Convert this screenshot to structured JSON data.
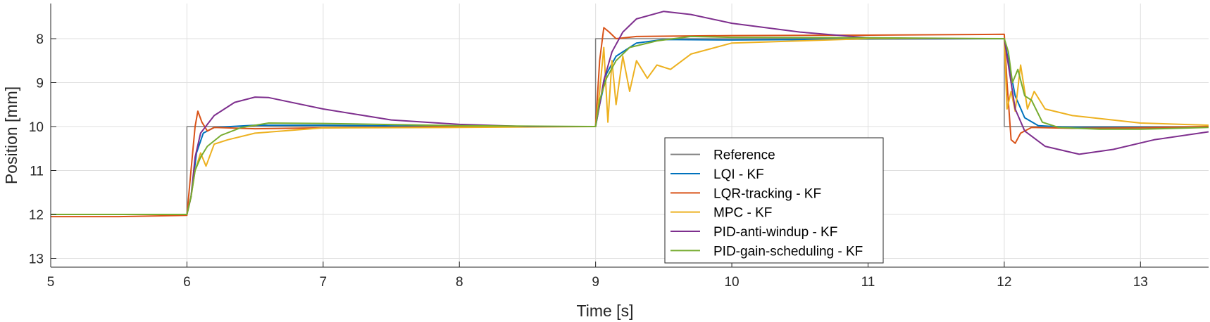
{
  "chart_data": {
    "type": "line",
    "title": "",
    "xlabel": "Time [s]",
    "ylabel": "Position [mm]",
    "xlim": [
      5,
      13.5
    ],
    "ylim": [
      13.2,
      7.2
    ],
    "y_reversed": true,
    "grid": true,
    "legend_position": "bottom-center",
    "xticks": [
      "5",
      "6",
      "7",
      "8",
      "9",
      "10",
      "11",
      "12",
      "13"
    ],
    "yticks": [
      "8",
      "9",
      "10",
      "11",
      "12",
      "13"
    ],
    "series": [
      {
        "name": "Reference",
        "color": "#808080",
        "points": [
          [
            5,
            12
          ],
          [
            6,
            12
          ],
          [
            6,
            10
          ],
          [
            9,
            10
          ],
          [
            9,
            8
          ],
          [
            12,
            8
          ],
          [
            12,
            10
          ],
          [
            13.5,
            10
          ]
        ]
      },
      {
        "name": "LQI - KF",
        "color": "#0072BD",
        "points": [
          [
            5,
            12
          ],
          [
            6,
            12
          ],
          [
            6.03,
            11.6
          ],
          [
            6.07,
            10.6
          ],
          [
            6.12,
            10.15
          ],
          [
            6.2,
            10.02
          ],
          [
            6.5,
            9.97
          ],
          [
            7,
            9.97
          ],
          [
            8,
            10
          ],
          [
            9,
            10
          ],
          [
            9.03,
            9.5
          ],
          [
            9.08,
            8.8
          ],
          [
            9.15,
            8.4
          ],
          [
            9.3,
            8.1
          ],
          [
            9.5,
            8.02
          ],
          [
            10,
            8.03
          ],
          [
            11,
            8.01
          ],
          [
            12,
            8
          ],
          [
            12.03,
            8.5
          ],
          [
            12.08,
            9.3
          ],
          [
            12.15,
            9.8
          ],
          [
            12.25,
            9.98
          ],
          [
            12.5,
            10.02
          ],
          [
            13,
            10.02
          ],
          [
            13.5,
            10.01
          ]
        ]
      },
      {
        "name": "LQR-tracking - KF",
        "color": "#D95319",
        "points": [
          [
            5,
            12.05
          ],
          [
            5.5,
            12.05
          ],
          [
            6,
            12.02
          ],
          [
            6.03,
            11
          ],
          [
            6.06,
            10
          ],
          [
            6.08,
            9.65
          ],
          [
            6.11,
            9.9
          ],
          [
            6.15,
            10.1
          ],
          [
            6.2,
            10.02
          ],
          [
            6.5,
            10.05
          ],
          [
            7,
            10.03
          ],
          [
            8,
            10
          ],
          [
            9,
            10
          ],
          [
            9.03,
            8.5
          ],
          [
            9.06,
            7.75
          ],
          [
            9.1,
            7.85
          ],
          [
            9.15,
            8
          ],
          [
            9.3,
            7.95
          ],
          [
            10,
            7.93
          ],
          [
            11,
            7.92
          ],
          [
            12,
            7.9
          ],
          [
            12.02,
            9
          ],
          [
            12.05,
            10.3
          ],
          [
            12.08,
            10.38
          ],
          [
            12.12,
            10.15
          ],
          [
            12.2,
            10.02
          ],
          [
            12.5,
            10.04
          ],
          [
            13,
            10.03
          ],
          [
            13.5,
            10
          ]
        ]
      },
      {
        "name": "MPC - KF",
        "color": "#EDB120",
        "points": [
          [
            5,
            12
          ],
          [
            6,
            12
          ],
          [
            6.03,
            11.6
          ],
          [
            6.06,
            11
          ],
          [
            6.1,
            10.6
          ],
          [
            6.14,
            10.9
          ],
          [
            6.2,
            10.4
          ],
          [
            6.3,
            10.3
          ],
          [
            6.5,
            10.15
          ],
          [
            7,
            10.03
          ],
          [
            8,
            10.02
          ],
          [
            9,
            10
          ],
          [
            9.03,
            9.2
          ],
          [
            9.06,
            8.2
          ],
          [
            9.09,
            9.9
          ],
          [
            9.12,
            8.5
          ],
          [
            9.15,
            9.5
          ],
          [
            9.2,
            8.4
          ],
          [
            9.25,
            9.2
          ],
          [
            9.3,
            8.5
          ],
          [
            9.38,
            8.9
          ],
          [
            9.45,
            8.6
          ],
          [
            9.55,
            8.7
          ],
          [
            9.7,
            8.35
          ],
          [
            10,
            8.1
          ],
          [
            11,
            8
          ],
          [
            12,
            8
          ],
          [
            12.02,
            9.6
          ],
          [
            12.05,
            9.2
          ],
          [
            12.08,
            9.65
          ],
          [
            12.12,
            8.6
          ],
          [
            12.17,
            9.6
          ],
          [
            12.22,
            9.2
          ],
          [
            12.3,
            9.6
          ],
          [
            12.5,
            9.75
          ],
          [
            13,
            9.92
          ],
          [
            13.5,
            9.97
          ]
        ]
      },
      {
        "name": "PID-anti-windup - KF",
        "color": "#7E2F8E",
        "points": [
          [
            5,
            12
          ],
          [
            6,
            12
          ],
          [
            6.03,
            11.6
          ],
          [
            6.06,
            10.7
          ],
          [
            6.1,
            10.15
          ],
          [
            6.2,
            9.75
          ],
          [
            6.35,
            9.45
          ],
          [
            6.5,
            9.33
          ],
          [
            6.6,
            9.34
          ],
          [
            7,
            9.6
          ],
          [
            7.5,
            9.85
          ],
          [
            8,
            9.95
          ],
          [
            8.5,
            10
          ],
          [
            9,
            10
          ],
          [
            9.03,
            9.5
          ],
          [
            9.06,
            8.95
          ],
          [
            9.12,
            8.3
          ],
          [
            9.2,
            7.85
          ],
          [
            9.3,
            7.55
          ],
          [
            9.5,
            7.38
          ],
          [
            9.7,
            7.45
          ],
          [
            10,
            7.65
          ],
          [
            10.5,
            7.85
          ],
          [
            11,
            7.98
          ],
          [
            11.5,
            8
          ],
          [
            12,
            8
          ],
          [
            12.03,
            8.6
          ],
          [
            12.08,
            9.6
          ],
          [
            12.15,
            10.1
          ],
          [
            12.3,
            10.45
          ],
          [
            12.55,
            10.63
          ],
          [
            12.8,
            10.52
          ],
          [
            13.1,
            10.3
          ],
          [
            13.5,
            10.12
          ]
        ]
      },
      {
        "name": "PID-gain-scheduling - KF",
        "color": "#77AC30",
        "points": [
          [
            5,
            12
          ],
          [
            6,
            12
          ],
          [
            6.03,
            11.6
          ],
          [
            6.06,
            11
          ],
          [
            6.1,
            10.7
          ],
          [
            6.15,
            10.45
          ],
          [
            6.25,
            10.2
          ],
          [
            6.4,
            10.02
          ],
          [
            6.6,
            9.92
          ],
          [
            7,
            9.93
          ],
          [
            8,
            9.98
          ],
          [
            9,
            10
          ],
          [
            9.03,
            9.4
          ],
          [
            9.08,
            8.9
          ],
          [
            9.15,
            8.5
          ],
          [
            9.25,
            8.2
          ],
          [
            9.45,
            8.05
          ],
          [
            9.7,
            7.95
          ],
          [
            10,
            7.97
          ],
          [
            11,
            7.98
          ],
          [
            12,
            8
          ],
          [
            12.03,
            8.3
          ],
          [
            12.06,
            9
          ],
          [
            12.1,
            8.7
          ],
          [
            12.15,
            9.3
          ],
          [
            12.2,
            9.4
          ],
          [
            12.28,
            9.9
          ],
          [
            12.4,
            10.02
          ],
          [
            12.7,
            10.06
          ],
          [
            13,
            10.06
          ],
          [
            13.5,
            10.02
          ]
        ]
      }
    ]
  }
}
